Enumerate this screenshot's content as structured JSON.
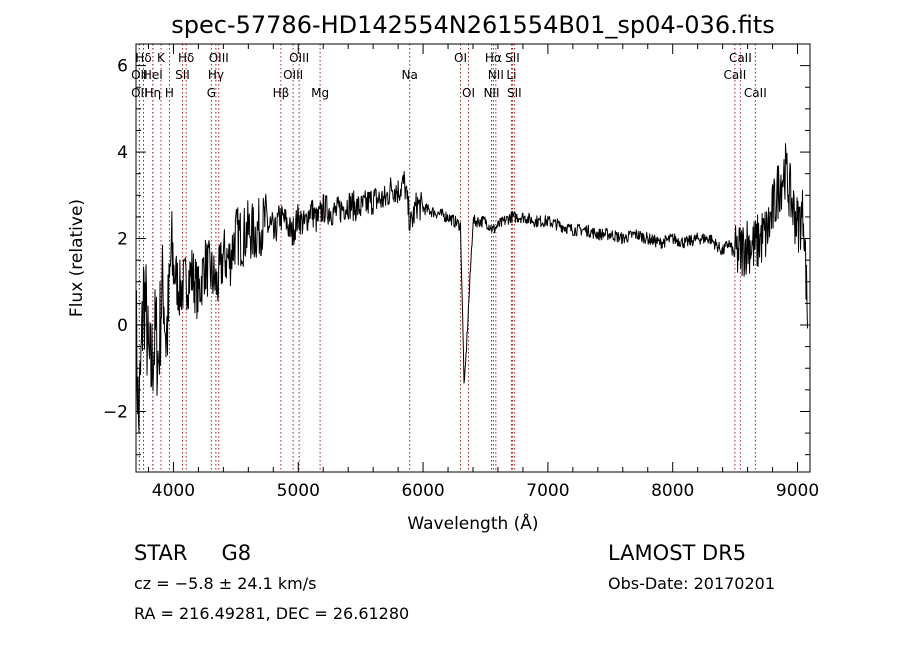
{
  "chart_data": {
    "type": "line",
    "title": "spec-57786-HD142554N261554B01_sp04-036.fits",
    "xlabel": "Wavelength (Å)",
    "ylabel": "Flux (relative)",
    "xlim": [
      3700,
      9100
    ],
    "ylim": [
      -3.4,
      6.5
    ],
    "x_ticks": [
      4000,
      5000,
      6000,
      7000,
      8000,
      9000
    ],
    "y_ticks": [
      -2,
      0,
      2,
      4,
      6
    ],
    "x_tick_labels": [
      "4000",
      "5000",
      "6000",
      "7000",
      "8000",
      "9000"
    ],
    "y_tick_labels": [
      "−2",
      "0",
      "2",
      "4",
      "6"
    ],
    "x_minor_step": 200,
    "y_minor_step": 0.5,
    "grid": false,
    "series": [
      {
        "x": [
          3700,
          3720,
          3740,
          3760,
          3780,
          3800,
          3820,
          3840,
          3860,
          3880,
          3900,
          3920,
          3940,
          3960,
          3980,
          4000,
          4050,
          4100,
          4150,
          4200,
          4250,
          4300,
          4350,
          4400,
          4450,
          4500,
          4550,
          4600,
          4650,
          4700,
          4750,
          4800,
          4850,
          4900,
          4950,
          5000,
          5050,
          5100,
          5150,
          5200,
          5300,
          5400,
          5500,
          5600,
          5700,
          5750,
          5800,
          5850,
          5890,
          5900,
          5950,
          6000,
          6100,
          6200,
          6300,
          6330,
          6400,
          6500,
          6562,
          6600,
          6700,
          6800,
          6900,
          7000,
          7100,
          7200,
          7300,
          7400,
          7500,
          7600,
          7700,
          7800,
          7900,
          8000,
          8100,
          8200,
          8300,
          8400,
          8450,
          8498,
          8542,
          8600,
          8662,
          8700,
          8750,
          8800,
          8850,
          8900,
          8950,
          9000,
          9050,
          9080
        ],
        "values": [
          0.2,
          -2.3,
          -1.0,
          0.8,
          0.3,
          -0.9,
          -1.1,
          -0.5,
          -0.2,
          -0.9,
          0.5,
          0.9,
          -0.3,
          0.2,
          1.6,
          1.3,
          0.8,
          1.0,
          1.2,
          0.7,
          1.4,
          1.2,
          0.9,
          1.6,
          1.5,
          2.1,
          2.0,
          2.2,
          2.1,
          2.3,
          2.4,
          2.0,
          2.5,
          2.4,
          2.1,
          2.5,
          2.3,
          2.7,
          2.4,
          2.7,
          2.6,
          2.8,
          2.7,
          2.9,
          2.9,
          3.2,
          3.1,
          3.3,
          2.5,
          2.3,
          2.8,
          2.7,
          2.6,
          2.5,
          2.3,
          -1.5,
          2.4,
          2.4,
          2.2,
          2.3,
          2.5,
          2.5,
          2.4,
          2.4,
          2.3,
          2.2,
          2.2,
          2.1,
          2.1,
          2.0,
          2.1,
          2.0,
          1.9,
          2.0,
          1.9,
          2.0,
          2.0,
          1.7,
          1.9,
          1.6,
          1.7,
          1.9,
          1.8,
          2.0,
          2.1,
          2.6,
          3.2,
          3.6,
          2.9,
          2.3,
          2.6,
          0.2
        ]
      }
    ],
    "spectral_lines": [
      {
        "label": "Hδ",
        "x": 3760,
        "row": 1
      },
      {
        "label": "K",
        "x": 3900,
        "row": 1
      },
      {
        "label": "Hδ",
        "x": 4102,
        "row": 1
      },
      {
        "label": "OIII",
        "x": 4363,
        "row": 1
      },
      {
        "label": "OIII",
        "x": 5007,
        "row": 1
      },
      {
        "label": "OI",
        "x": 6300,
        "row": 1
      },
      {
        "label": "Hα",
        "x": 6563,
        "row": 1
      },
      {
        "label": "SII",
        "x": 6716,
        "row": 1
      },
      {
        "label": "CaII",
        "x": 8542,
        "row": 1
      },
      {
        "label": "OII",
        "x": 3727,
        "row": 2
      },
      {
        "label": "HeI",
        "x": 3835,
        "row": 2
      },
      {
        "label": "SII",
        "x": 4072,
        "row": 2
      },
      {
        "label": "Hγ",
        "x": 4340,
        "row": 2
      },
      {
        "label": "OIII",
        "x": 4959,
        "row": 2
      },
      {
        "label": "Na",
        "x": 5893,
        "row": 2
      },
      {
        "label": "NII",
        "x": 6583,
        "row": 2
      },
      {
        "label": "Li",
        "x": 6708,
        "row": 2
      },
      {
        "label": "CaII",
        "x": 8498,
        "row": 2
      },
      {
        "label": "OII",
        "x": 3727,
        "row": 3
      },
      {
        "label": "Hη",
        "x": 3835,
        "row": 3
      },
      {
        "label": "H",
        "x": 3968,
        "row": 3
      },
      {
        "label": "G",
        "x": 4304,
        "row": 3
      },
      {
        "label": "Hβ",
        "x": 4861,
        "row": 3
      },
      {
        "label": "Mg",
        "x": 5175,
        "row": 3
      },
      {
        "label": "OI",
        "x": 6364,
        "row": 3
      },
      {
        "label": "NII",
        "x": 6548,
        "row": 3
      },
      {
        "label": "SII",
        "x": 6731,
        "row": 3
      },
      {
        "label": "CaII",
        "x": 8662,
        "row": 3
      }
    ]
  },
  "info": {
    "object_class": "STAR",
    "subclass": "G8",
    "redshift": "cz = −5.8 ± 24.1 km/s",
    "coordinates": "RA = 216.49281, DEC =  26.61280",
    "survey": "LAMOST DR5",
    "obs_date": "Obs-Date: 20170201"
  },
  "colors": {
    "line_markers": "#aa2222",
    "spectrum": "#000000"
  }
}
